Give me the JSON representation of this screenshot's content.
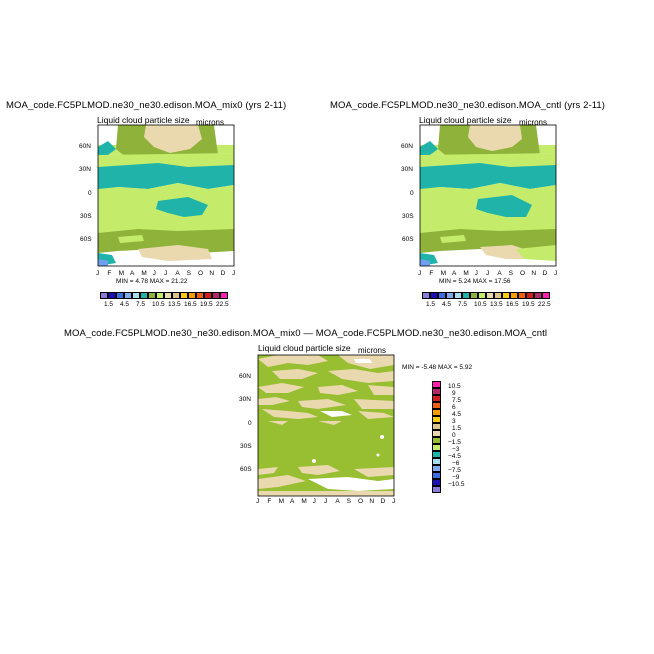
{
  "colors": {
    "olive": "#8fb33a",
    "lightgreen": "#c4ec6a",
    "teal": "#1fb3a9",
    "tan": "#ead9ae",
    "tanlight": "#f2e6c5",
    "white": "#ffffff",
    "blue": "#6f9ff0",
    "diffgreen": "#98be32"
  },
  "panels": {
    "left": {
      "title": "MOA_code.FC5PLMOD.ne30_ne30.edison.MOA_mix0 (yrs 2-11)",
      "subtitle": "Liquid cloud particle size",
      "units": "microns",
      "min_max": "MIN =     4.78  MAX =    21.22"
    },
    "right": {
      "title": "MOA_code.FC5PLMOD.ne30_ne30.edison.MOA_cntl (yrs 2-11)",
      "subtitle": "Liquid cloud particle size",
      "units": "microns",
      "min_max": "MIN =     5.24  MAX =    17.56"
    },
    "diff": {
      "title": "MOA_code.FC5PLMOD.ne30_ne30.edison.MOA_mix0 — MOA_code.FC5PLMOD.ne30_ne30.edison.MOA_cntl",
      "subtitle": "Liquid cloud particle size",
      "units": "microns",
      "min_max": "MIN =   -5.48  MAX =     5.92"
    }
  },
  "chart_data": [
    {
      "type": "heatmap",
      "panel": "left",
      "x_ticks": [
        "J",
        "F",
        "M",
        "A",
        "M",
        "J",
        "J",
        "A",
        "S",
        "O",
        "N",
        "D",
        "J"
      ],
      "y_ticks": [
        "60N",
        "30N",
        "0",
        "30S",
        "60S"
      ],
      "y_values": [
        60,
        30,
        0,
        -30,
        -60
      ],
      "ylim": [
        -90,
        90
      ],
      "min": 4.78,
      "max": 21.22,
      "colorbar": {
        "labels": [
          "1.5",
          "4.5",
          "7.5",
          "10.5",
          "13.5",
          "16.5",
          "19.5",
          "22.5"
        ],
        "colors": [
          "#8c7ad8",
          "#1c0fb6",
          "#3b6ee0",
          "#7faaf0",
          "#a8dcef",
          "#1fb3a9",
          "#8fb33a",
          "#c4ec6a",
          "#ead9ae",
          "#dcc48c",
          "#f8cc10",
          "#f6a000",
          "#ef5f10",
          "#d01d1d",
          "#b02a6b",
          "#ff1fb0"
        ]
      }
    },
    {
      "type": "heatmap",
      "panel": "right",
      "x_ticks": [
        "J",
        "F",
        "M",
        "A",
        "M",
        "J",
        "J",
        "A",
        "S",
        "O",
        "N",
        "D",
        "J"
      ],
      "y_ticks": [
        "60N",
        "30N",
        "0",
        "30S",
        "60S"
      ],
      "y_values": [
        60,
        30,
        0,
        -30,
        -60
      ],
      "ylim": [
        -90,
        90
      ],
      "min": 5.24,
      "max": 17.56,
      "colorbar": {
        "labels": [
          "1.5",
          "4.5",
          "7.5",
          "10.5",
          "13.5",
          "16.5",
          "19.5",
          "22.5"
        ],
        "colors": [
          "#8c7ad8",
          "#1c0fb6",
          "#3b6ee0",
          "#7faaf0",
          "#a8dcef",
          "#1fb3a9",
          "#8fb33a",
          "#c4ec6a",
          "#ead9ae",
          "#dcc48c",
          "#f8cc10",
          "#f6a000",
          "#ef5f10",
          "#d01d1d",
          "#b02a6b",
          "#ff1fb0"
        ]
      }
    },
    {
      "type": "heatmap",
      "panel": "diff",
      "x_ticks": [
        "J",
        "F",
        "M",
        "A",
        "M",
        "J",
        "J",
        "A",
        "S",
        "O",
        "N",
        "D",
        "J"
      ],
      "y_ticks": [
        "60N",
        "30N",
        "0",
        "30S",
        "60S"
      ],
      "y_values": [
        60,
        30,
        0,
        -30,
        -60
      ],
      "ylim": [
        -90,
        90
      ],
      "min": -5.48,
      "max": 5.92,
      "colorbar": {
        "labels": [
          "10.5",
          "9",
          "7.5",
          "6",
          "4.5",
          "3",
          "1.5",
          "0",
          "−1.5",
          "−3",
          "−4.5",
          "−6",
          "−7.5",
          "−9",
          "−10.5"
        ],
        "colors": [
          "#ff1fb0",
          "#b02a6b",
          "#d01d1d",
          "#ef5f10",
          "#f6a000",
          "#f8cc10",
          "#dcc48c",
          "#ead9ae",
          "#98be32",
          "#c4ec6a",
          "#1fb3a9",
          "#a8dcef",
          "#7faaf0",
          "#3b6ee0",
          "#1c0fb6",
          "#8c7ad8"
        ]
      }
    }
  ]
}
